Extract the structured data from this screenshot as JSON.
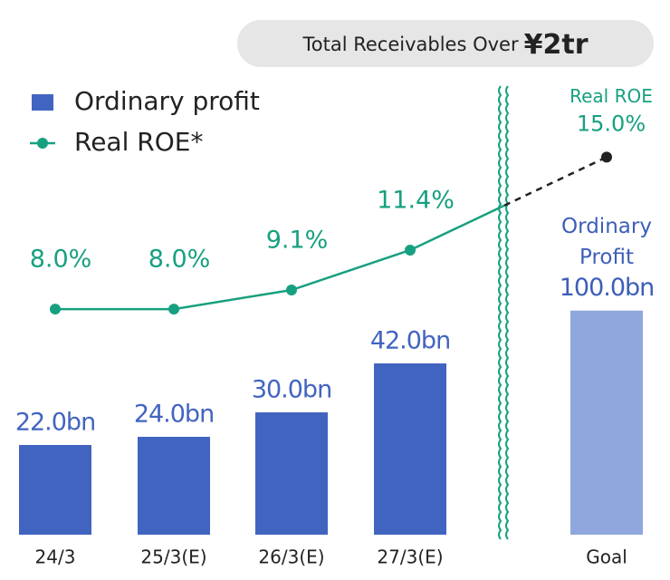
{
  "banner": {
    "text": "Total Receivables Over",
    "amount": "¥2tr"
  },
  "chart_data": [
    {
      "type": "bar",
      "categories": [
        "24/3",
        "25/3(E)",
        "26/3(E)",
        "27/3(E)"
      ],
      "series": [
        {
          "name": "Ordinary profit",
          "type": "bar",
          "color": "#4264c1",
          "values": [
            22.0,
            24.0,
            30.0,
            42.0
          ],
          "value_labels": [
            "22.0bn",
            "24.0bn",
            "30.0bn",
            "42.0bn"
          ]
        },
        {
          "name": "Real ROE*",
          "type": "line",
          "axis": "y2",
          "color": "#17a07f",
          "values": [
            8.0,
            8.0,
            9.1,
            11.4
          ],
          "value_labels": [
            "8.0%",
            "8.0%",
            "9.1%",
            "11.4%"
          ]
        }
      ],
      "ylim": [
        0,
        100
      ],
      "y2lim": [
        -5,
        18.5
      ]
    },
    {
      "type": "bar",
      "categories": [
        "Goal"
      ],
      "series": [
        {
          "label": [
            "Ordinary",
            "Profit"
          ],
          "type": "bar",
          "color": "#8fa7dd",
          "values": [
            100.0
          ],
          "value_labels": [
            "100.0bn"
          ]
        },
        {
          "label": [
            "Real ROE"
          ],
          "type": "line",
          "axis": "y2",
          "color": "#222222",
          "values": [
            15.0
          ],
          "value_labels": [
            "15.0%"
          ]
        }
      ],
      "ylim": [
        0,
        182
      ],
      "y2lim": [
        0,
        16.2
      ]
    }
  ]
}
